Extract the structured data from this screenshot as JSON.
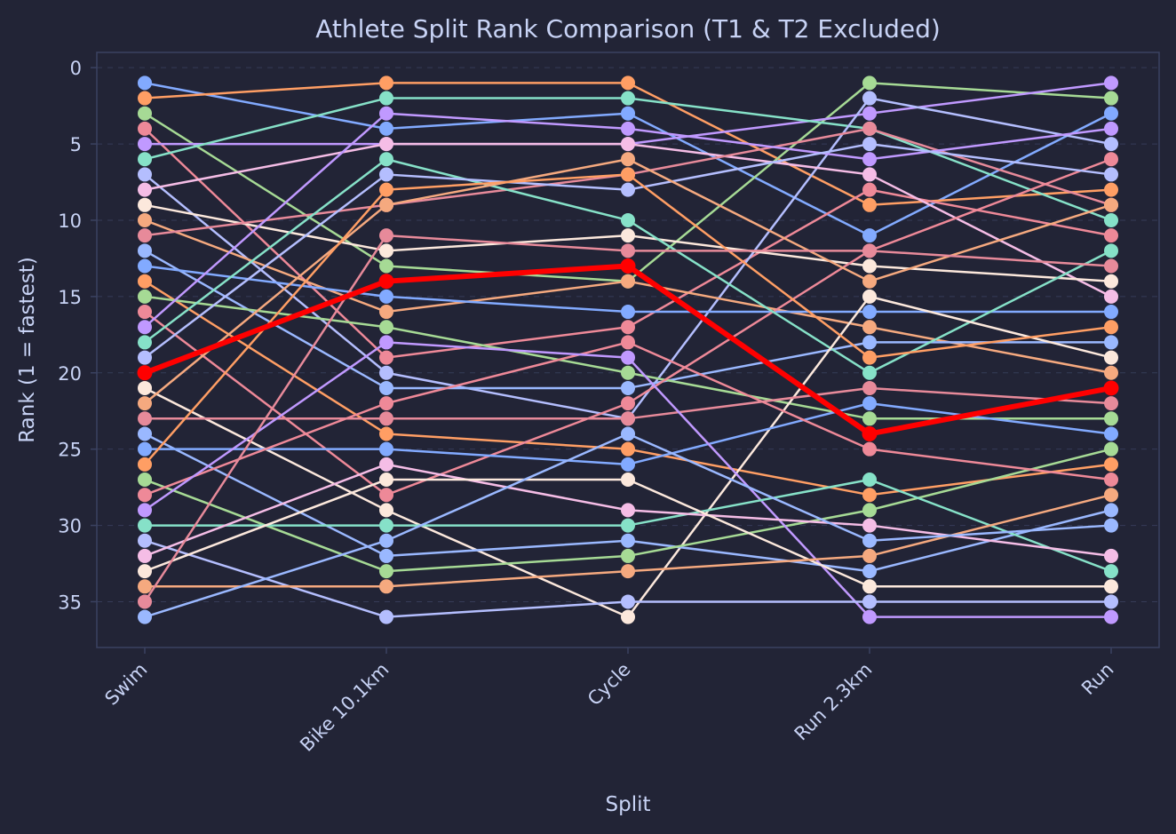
{
  "chart_data": {
    "type": "line",
    "title": "Athlete Split Rank Comparison (T1 & T2 Excluded)",
    "xlabel": "Split",
    "ylabel": "Rank (1 = fastest)",
    "categories": [
      "Swim",
      "Bike 10.1km",
      "Cycle",
      "Run 2.3km",
      "Run"
    ],
    "y_ticks": [
      0,
      5,
      10,
      15,
      20,
      25,
      30,
      35
    ],
    "ylim": [
      38,
      -1
    ],
    "y_inverted": true,
    "grid": true,
    "highlight": {
      "color": "#ff0000",
      "values": [
        20,
        14,
        13,
        24,
        21
      ]
    },
    "colors": {
      "background": "#222436",
      "frame": "#3b4261",
      "text": "#c8d3f5",
      "palette": [
        "#82aaff",
        "#ff9e64",
        "#a6da95",
        "#ee8998",
        "#c099ff",
        "#86e1c8",
        "#b4befe",
        "#f5bde6",
        "#fce8dc",
        "#f5a97f",
        "#e78a9a",
        "#9ab8ff"
      ]
    },
    "series": [
      {
        "values": [
          1,
          4,
          3,
          11,
          3
        ]
      },
      {
        "values": [
          2,
          1,
          1,
          9,
          8
        ]
      },
      {
        "values": [
          3,
          13,
          14,
          1,
          2
        ]
      },
      {
        "values": [
          4,
          19,
          17,
          8,
          11
        ]
      },
      {
        "values": [
          5,
          5,
          5,
          3,
          1
        ]
      },
      {
        "values": [
          6,
          2,
          2,
          4,
          10
        ]
      },
      {
        "values": [
          7,
          20,
          23,
          2,
          5
        ]
      },
      {
        "values": [
          8,
          5,
          5,
          7,
          15
        ]
      },
      {
        "values": [
          9,
          12,
          11,
          13,
          14
        ]
      },
      {
        "values": [
          10,
          16,
          14,
          17,
          20
        ]
      },
      {
        "values": [
          11,
          9,
          7,
          4,
          9
        ]
      },
      {
        "values": [
          12,
          21,
          21,
          18,
          18
        ]
      },
      {
        "values": [
          13,
          15,
          16,
          16,
          16
        ]
      },
      {
        "values": [
          14,
          24,
          25,
          28,
          26
        ]
      },
      {
        "values": [
          15,
          17,
          20,
          23,
          23
        ]
      },
      {
        "values": [
          16,
          28,
          22,
          12,
          6
        ]
      },
      {
        "values": [
          17,
          3,
          4,
          6,
          4
        ]
      },
      {
        "values": [
          18,
          6,
          10,
          20,
          12
        ]
      },
      {
        "values": [
          19,
          7,
          8,
          5,
          7
        ]
      },
      {
        "values": [
          20,
          14,
          13,
          24,
          21
        ]
      },
      {
        "values": [
          21,
          29,
          36,
          15,
          19
        ]
      },
      {
        "values": [
          22,
          9,
          6,
          14,
          9
        ]
      },
      {
        "values": [
          23,
          23,
          23,
          21,
          22
        ]
      },
      {
        "values": [
          24,
          32,
          31,
          33,
          29
        ]
      },
      {
        "values": [
          25,
          25,
          26,
          22,
          24
        ]
      },
      {
        "values": [
          26,
          8,
          7,
          19,
          17
        ]
      },
      {
        "values": [
          27,
          33,
          32,
          29,
          25
        ]
      },
      {
        "values": [
          28,
          22,
          18,
          25,
          27
        ]
      },
      {
        "values": [
          29,
          18,
          19,
          36,
          36
        ]
      },
      {
        "values": [
          30,
          30,
          30,
          27,
          33
        ]
      },
      {
        "values": [
          31,
          36,
          35,
          35,
          35
        ]
      },
      {
        "values": [
          32,
          26,
          29,
          30,
          32
        ]
      },
      {
        "values": [
          33,
          27,
          27,
          34,
          34
        ]
      },
      {
        "values": [
          34,
          34,
          33,
          32,
          28
        ]
      },
      {
        "values": [
          35,
          11,
          12,
          12,
          13
        ]
      },
      {
        "values": [
          36,
          31,
          24,
          31,
          30
        ]
      }
    ]
  }
}
